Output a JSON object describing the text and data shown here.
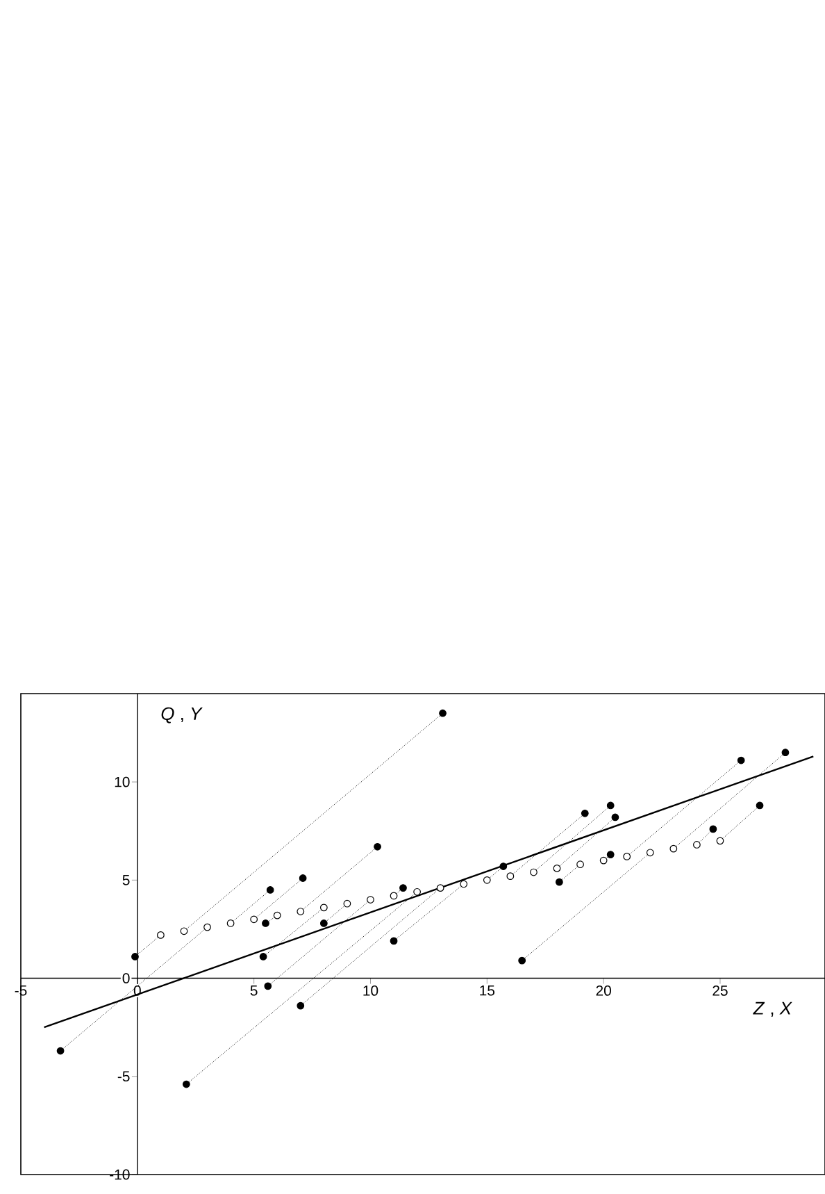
{
  "chart_data": {
    "type": "scatter",
    "xlabel": "*Z* , *X*",
    "ylabel": "*Q* , *Y*",
    "xlim": [
      -5,
      29.5
    ],
    "ylim": [
      -10,
      14.5
    ],
    "xticks": [
      -5,
      0,
      5,
      10,
      15,
      20,
      25
    ],
    "yticks": [
      -10,
      -5,
      0,
      5,
      10
    ],
    "series": [
      {
        "type": "line",
        "marker": "none",
        "line_style": "dotted",
        "color": "#000000",
        "x": [
          -0.1,
          1
        ],
        "values": [
          1.1,
          2.2
        ]
      },
      {
        "type": "line",
        "marker": "none",
        "line_style": "dotted",
        "color": "#000000",
        "x": [
          13.1,
          2
        ],
        "values": [
          13.5,
          2.4
        ]
      },
      {
        "type": "line",
        "marker": "none",
        "line_style": "dotted",
        "color": "#000000",
        "x": [
          -3.3,
          3
        ],
        "values": [
          -3.7,
          2.6
        ]
      },
      {
        "type": "line",
        "marker": "none",
        "line_style": "dotted",
        "color": "#000000",
        "x": [
          5.7,
          4
        ],
        "values": [
          4.5,
          2.8
        ]
      },
      {
        "type": "line",
        "marker": "none",
        "line_style": "dotted",
        "color": "#000000",
        "x": [
          7.1,
          5
        ],
        "values": [
          5.1,
          3.0
        ]
      },
      {
        "type": "line",
        "marker": "none",
        "line_style": "dotted",
        "color": "#000000",
        "x": [
          5.5,
          6
        ],
        "values": [
          2.8,
          3.2
        ]
      },
      {
        "type": "line",
        "marker": "none",
        "line_style": "dotted",
        "color": "#000000",
        "x": [
          10.3,
          7
        ],
        "values": [
          6.7,
          3.4
        ]
      },
      {
        "type": "line",
        "marker": "none",
        "line_style": "dotted",
        "color": "#000000",
        "x": [
          5.4,
          8
        ],
        "values": [
          1.1,
          3.6
        ]
      },
      {
        "type": "line",
        "marker": "none",
        "line_style": "dotted",
        "color": "#000000",
        "x": [
          8.0,
          9
        ],
        "values": [
          2.8,
          3.8
        ]
      },
      {
        "type": "line",
        "marker": "none",
        "line_style": "dotted",
        "color": "#000000",
        "x": [
          5.6,
          10
        ],
        "values": [
          -0.4,
          4.0
        ]
      },
      {
        "type": "line",
        "marker": "none",
        "line_style": "dotted",
        "color": "#000000",
        "x": [
          11.4,
          11
        ],
        "values": [
          4.6,
          4.2
        ]
      },
      {
        "type": "line",
        "marker": "none",
        "line_style": "dotted",
        "color": "#000000",
        "x": [
          2.1,
          12
        ],
        "values": [
          -5.4,
          4.4
        ]
      },
      {
        "type": "line",
        "marker": "none",
        "line_style": "dotted",
        "color": "#000000",
        "x": [
          7.0,
          13
        ],
        "values": [
          -1.4,
          4.6
        ]
      },
      {
        "type": "line",
        "marker": "none",
        "line_style": "dotted",
        "color": "#000000",
        "x": [
          11.0,
          14
        ],
        "values": [
          1.9,
          4.8
        ]
      },
      {
        "type": "line",
        "marker": "none",
        "line_style": "dotted",
        "color": "#000000",
        "x": [
          15.7,
          15
        ],
        "values": [
          5.7,
          5.0
        ]
      },
      {
        "type": "line",
        "marker": "none",
        "line_style": "dotted",
        "color": "#000000",
        "x": [
          19.2,
          16
        ],
        "values": [
          8.4,
          5.2
        ]
      },
      {
        "type": "line",
        "marker": "none",
        "line_style": "dotted",
        "color": "#000000",
        "x": [
          20.3,
          17
        ],
        "values": [
          8.8,
          5.4
        ]
      },
      {
        "type": "line",
        "marker": "none",
        "line_style": "dotted",
        "color": "#000000",
        "x": [
          20.5,
          18
        ],
        "values": [
          8.2,
          5.6
        ]
      },
      {
        "type": "line",
        "marker": "none",
        "line_style": "dotted",
        "color": "#000000",
        "x": [
          18.1,
          19
        ],
        "values": [
          4.9,
          5.8
        ]
      },
      {
        "type": "line",
        "marker": "none",
        "line_style": "dotted",
        "color": "#000000",
        "x": [
          20.3,
          20
        ],
        "values": [
          6.3,
          6.0
        ]
      },
      {
        "type": "line",
        "marker": "none",
        "line_style": "dotted",
        "color": "#000000",
        "x": [
          25.9,
          21
        ],
        "values": [
          11.1,
          6.2
        ]
      },
      {
        "type": "line",
        "marker": "none",
        "line_style": "dotted",
        "color": "#000000",
        "x": [
          16.5,
          22
        ],
        "values": [
          0.9,
          6.4
        ]
      },
      {
        "type": "line",
        "marker": "none",
        "line_style": "dotted",
        "color": "#000000",
        "x": [
          27.8,
          23
        ],
        "values": [
          11.5,
          6.6
        ]
      },
      {
        "type": "line",
        "marker": "none",
        "line_style": "dotted",
        "color": "#000000",
        "x": [
          24.7,
          24
        ],
        "values": [
          7.6,
          6.8
        ]
      },
      {
        "type": "line",
        "marker": "none",
        "line_style": "dotted",
        "color": "#000000",
        "x": [
          26.7,
          25
        ],
        "values": [
          8.8,
          7.0
        ]
      },
      {
        "type": "line",
        "marker": "none",
        "line_style": "solid",
        "color": "#000000",
        "x": [
          -4.0,
          29.0
        ],
        "values": [
          -2.5,
          11.3
        ]
      },
      {
        "marker": "circle",
        "color": "#000000",
        "x": [
          -0.1,
          13.1,
          -3.3,
          5.7,
          7.1,
          5.5,
          10.3,
          5.4,
          8.0,
          5.6,
          11.4,
          2.1,
          7.0,
          11.0,
          15.7,
          19.2,
          20.3,
          20.5,
          18.1,
          20.3,
          25.9,
          16.5,
          27.8,
          24.7,
          26.7
        ],
        "values": [
          1.1,
          13.5,
          -3.7,
          4.5,
          5.1,
          2.8,
          6.7,
          1.1,
          2.8,
          -0.4,
          4.6,
          -5.4,
          -1.4,
          1.9,
          5.7,
          8.4,
          8.8,
          8.2,
          4.9,
          6.3,
          11.1,
          0.9,
          11.5,
          7.6,
          8.8
        ]
      },
      {
        "marker": "circle",
        "color": "#ffffff",
        "x": [
          1,
          2,
          3,
          4,
          5,
          6,
          7,
          8,
          9,
          10,
          11,
          12,
          13,
          14,
          15,
          16,
          17,
          18,
          19,
          20,
          21,
          22,
          23,
          24,
          25
        ],
        "values": [
          2.2,
          2.4,
          2.6,
          2.8,
          3.0,
          3.2,
          3.4,
          3.6,
          3.8,
          4.0,
          4.2,
          4.4,
          4.6,
          4.8,
          5.0,
          5.2,
          5.4,
          5.6,
          5.8,
          6.0,
          6.2,
          6.4,
          6.6,
          6.8,
          7.0
        ]
      }
    ]
  }
}
